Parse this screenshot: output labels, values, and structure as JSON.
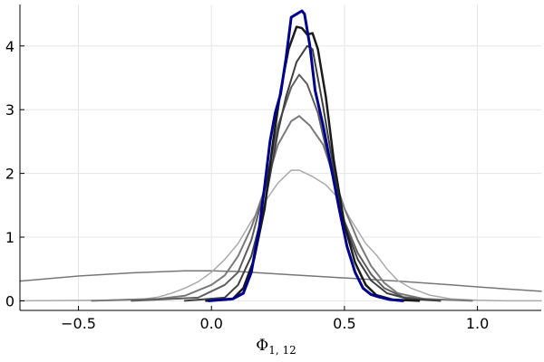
{
  "chart_data": {
    "type": "line",
    "title": "",
    "xlabel": "Φ",
    "xlabel_subscript": "1, 12",
    "ylabel": "",
    "xlim": [
      -0.72,
      1.24
    ],
    "ylim": [
      -0.15,
      4.65
    ],
    "xticks": [
      -0.5,
      0.0,
      0.5,
      1.0
    ],
    "xtick_labels": [
      "−0.5",
      "0.0",
      "0.5",
      "1.0"
    ],
    "yticks": [
      0,
      1,
      2,
      3,
      4
    ],
    "ytick_labels": [
      "0",
      "1",
      "2",
      "3",
      "4"
    ],
    "grid": true,
    "legend": "none",
    "series": [
      {
        "color": "#777777",
        "width": 1.5,
        "x": [
          -0.72,
          -0.5,
          -0.3,
          -0.1,
          0.0,
          0.1,
          0.3,
          0.5,
          0.7,
          0.9,
          1.1,
          1.24
        ],
        "y": [
          0.31,
          0.39,
          0.44,
          0.47,
          0.47,
          0.46,
          0.41,
          0.36,
          0.31,
          0.25,
          0.19,
          0.15
        ]
      },
      {
        "color": "#aaaaaa",
        "width": 1.5,
        "x": [
          -0.72,
          -0.4,
          -0.25,
          -0.2,
          -0.15,
          -0.1,
          -0.05,
          0.0,
          0.05,
          0.1,
          0.15,
          0.2,
          0.25,
          0.3,
          0.33,
          0.38,
          0.43,
          0.48,
          0.52,
          0.55,
          0.58,
          0.62,
          0.66,
          0.7,
          0.75,
          0.82,
          0.9,
          1.0,
          1.1,
          1.24
        ],
        "y": [
          0.0,
          0.01,
          0.03,
          0.06,
          0.12,
          0.2,
          0.3,
          0.45,
          0.65,
          0.9,
          1.25,
          1.55,
          1.85,
          2.05,
          2.05,
          1.95,
          1.82,
          1.6,
          1.3,
          1.1,
          0.9,
          0.72,
          0.5,
          0.32,
          0.2,
          0.09,
          0.03,
          0.01,
          0.0,
          0.0
        ]
      },
      {
        "color": "#7a7a7a",
        "width": 2,
        "x": [
          -0.45,
          -0.2,
          -0.1,
          0.0,
          0.05,
          0.1,
          0.15,
          0.2,
          0.25,
          0.3,
          0.33,
          0.37,
          0.42,
          0.46,
          0.5,
          0.55,
          0.6,
          0.65,
          0.7,
          0.8,
          0.98
        ],
        "y": [
          0.0,
          0.03,
          0.08,
          0.25,
          0.4,
          0.7,
          1.15,
          1.75,
          2.45,
          2.82,
          2.9,
          2.75,
          2.45,
          1.95,
          1.45,
          0.95,
          0.55,
          0.28,
          0.12,
          0.03,
          0.0
        ]
      },
      {
        "color": "#5e5e5e",
        "width": 2,
        "x": [
          -0.3,
          -0.05,
          0.05,
          0.1,
          0.15,
          0.2,
          0.25,
          0.3,
          0.33,
          0.36,
          0.4,
          0.45,
          0.5,
          0.55,
          0.6,
          0.65,
          0.72,
          0.86
        ],
        "y": [
          0.0,
          0.05,
          0.25,
          0.45,
          0.95,
          1.75,
          2.75,
          3.35,
          3.55,
          3.4,
          2.95,
          2.05,
          1.25,
          0.75,
          0.42,
          0.2,
          0.06,
          0.0
        ]
      },
      {
        "color": "#404040",
        "width": 2,
        "x": [
          -0.1,
          0.05,
          0.1,
          0.15,
          0.2,
          0.25,
          0.28,
          0.32,
          0.36,
          0.38,
          0.42,
          0.46,
          0.5,
          0.55,
          0.6,
          0.66,
          0.74,
          0.86
        ],
        "y": [
          0.0,
          0.05,
          0.25,
          0.7,
          1.5,
          2.65,
          3.2,
          3.75,
          4.0,
          3.95,
          3.05,
          2.05,
          1.2,
          0.65,
          0.32,
          0.12,
          0.03,
          0.0
        ]
      },
      {
        "color": "#1a1a1a",
        "width": 2.5,
        "x": [
          -0.02,
          0.08,
          0.12,
          0.16,
          0.2,
          0.23,
          0.26,
          0.29,
          0.32,
          0.34,
          0.36,
          0.38,
          0.4,
          0.43,
          0.46,
          0.5,
          0.54,
          0.58,
          0.62,
          0.68,
          0.78
        ],
        "y": [
          0.0,
          0.03,
          0.2,
          0.65,
          1.45,
          2.45,
          3.3,
          3.95,
          4.3,
          4.28,
          4.18,
          4.2,
          3.95,
          3.2,
          2.2,
          1.2,
          0.6,
          0.25,
          0.09,
          0.02,
          0.0
        ]
      },
      {
        "color": "#00008b",
        "width": 3,
        "x": [
          -0.01,
          0.08,
          0.12,
          0.15,
          0.18,
          0.2,
          0.22,
          0.24,
          0.26,
          0.28,
          0.3,
          0.32,
          0.34,
          0.35,
          0.37,
          0.39,
          0.42,
          0.45,
          0.48,
          0.51,
          0.54,
          0.57,
          0.6,
          0.63,
          0.67,
          0.72
        ],
        "y": [
          0.0,
          0.03,
          0.12,
          0.45,
          1.15,
          1.8,
          2.5,
          2.95,
          3.25,
          3.8,
          4.45,
          4.5,
          4.55,
          4.5,
          4.0,
          3.3,
          2.75,
          2.1,
          1.45,
          0.85,
          0.45,
          0.2,
          0.1,
          0.06,
          0.02,
          0.0
        ]
      }
    ]
  }
}
